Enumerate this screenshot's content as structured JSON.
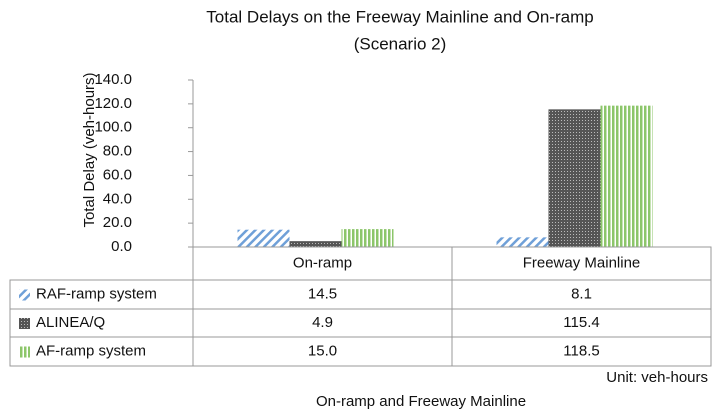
{
  "chart_data": {
    "type": "bar",
    "title": "Total Delays on the Freeway Mainline and On-ramp",
    "subtitle": "(Scenario 2)",
    "y_label": "Total Delay (veh-hours)",
    "x_label": "On-ramp and Freeway Mainline",
    "annotation": "Unit: veh-hours",
    "categories": [
      "On-ramp",
      "Freeway Mainline"
    ],
    "series": [
      {
        "name": "RAF-ramp system",
        "color": "#6fa0d8",
        "pattern": "diagonal",
        "values": [
          14.5,
          8.1
        ],
        "value_labels": [
          "14.5",
          "8.1"
        ]
      },
      {
        "name": "ALINEA/Q",
        "color": "#555555",
        "pattern": "dense",
        "values": [
          4.9,
          115.4
        ],
        "value_labels": [
          "4.9",
          "115.4"
        ]
      },
      {
        "name": "AF-ramp system",
        "color": "#8cc66a",
        "pattern": "vertical",
        "values": [
          15.0,
          118.5
        ],
        "value_labels": [
          "15.0",
          "118.5"
        ]
      }
    ],
    "ylim": [
      0,
      140
    ],
    "yticks": [
      {
        "value": 0,
        "label": "0.0"
      },
      {
        "value": 20,
        "label": "20.0"
      },
      {
        "value": 40,
        "label": "40.0"
      },
      {
        "value": 60,
        "label": "60.0"
      },
      {
        "value": 80,
        "label": "80.0"
      },
      {
        "value": 100,
        "label": "100.0"
      },
      {
        "value": 120,
        "label": "120.0"
      },
      {
        "value": 140,
        "label": "140.0"
      }
    ],
    "grid": false
  }
}
